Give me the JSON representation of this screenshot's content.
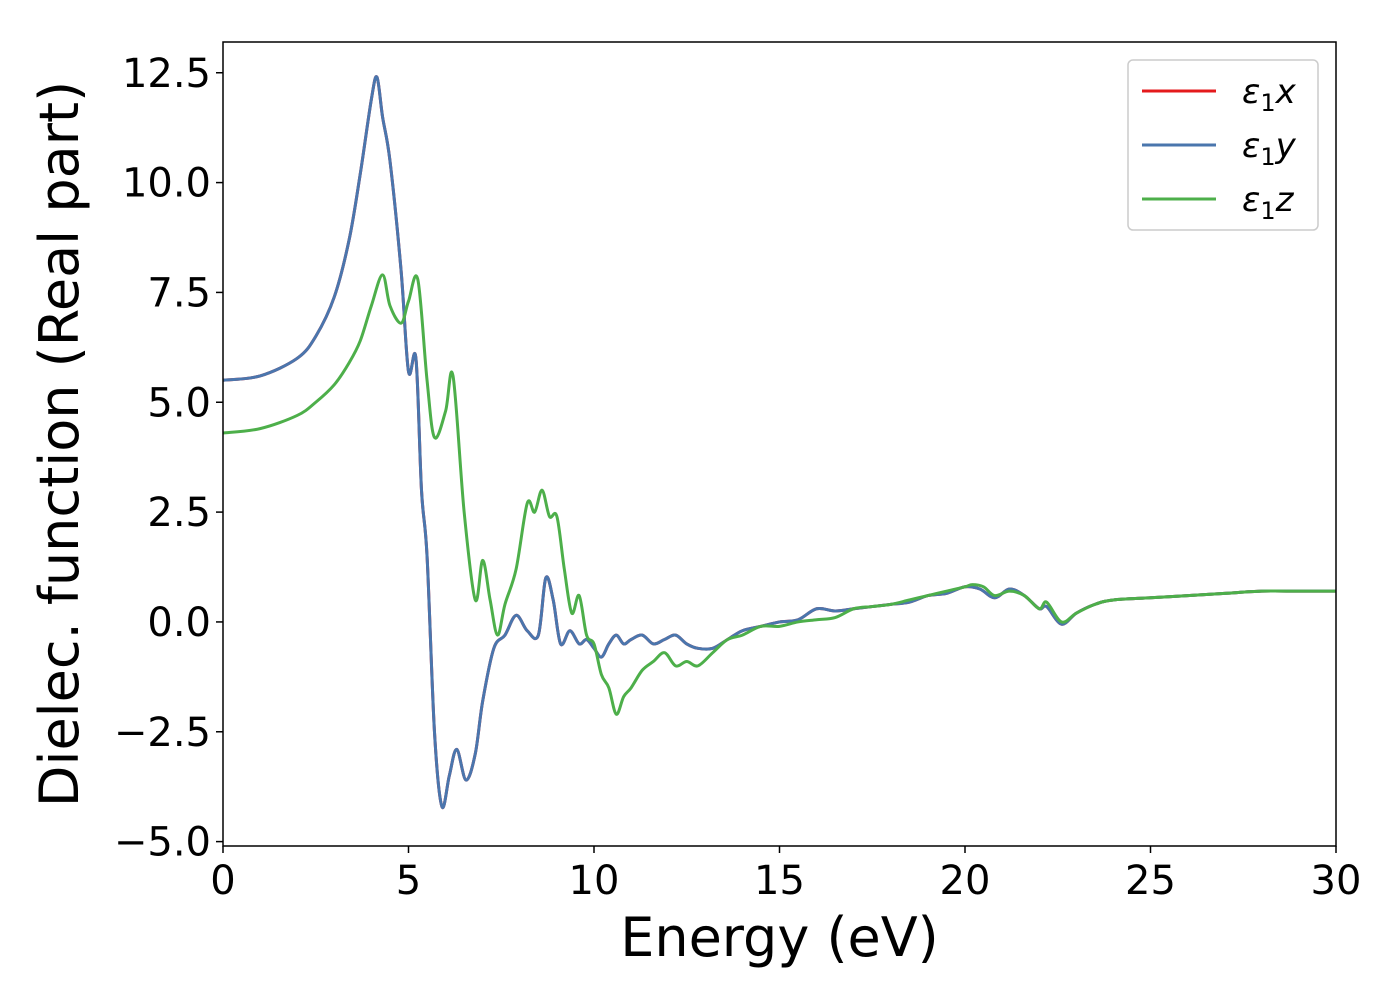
{
  "chart_data": {
    "type": "line",
    "title": "",
    "xlabel": "Energy (eV)",
    "ylabel": "Dielec. function (Real part)",
    "xlim": [
      0,
      30
    ],
    "ylim": [
      -5.1,
      13.2
    ],
    "x_ticks": [
      0,
      5,
      10,
      15,
      20,
      25,
      30
    ],
    "x_tick_labels": [
      "0",
      "5",
      "10",
      "15",
      "20",
      "25",
      "30"
    ],
    "y_ticks": [
      -5.0,
      -2.5,
      0.0,
      2.5,
      5.0,
      7.5,
      10.0,
      12.5
    ],
    "y_tick_labels": [
      "−5.0",
      "−2.5",
      "0.0",
      "2.5",
      "5.0",
      "7.5",
      "10.0",
      "12.5"
    ],
    "grid": false,
    "legend": "top-right",
    "series": [
      {
        "name": "ε₁x",
        "name_base": "ε",
        "name_sub": "1",
        "name_suffix": "x",
        "color": "#e41a1c",
        "x": [
          0,
          1,
          2,
          2.5,
          3,
          3.4,
          3.7,
          4.0,
          4.15,
          4.3,
          4.5,
          4.8,
          5.0,
          5.2,
          5.35,
          5.5,
          5.7,
          5.9,
          6.1,
          6.3,
          6.55,
          6.8,
          7.0,
          7.3,
          7.6,
          7.9,
          8.2,
          8.5,
          8.7,
          8.9,
          9.1,
          9.35,
          9.6,
          9.8,
          10.0,
          10.2,
          10.4,
          10.6,
          10.8,
          11.0,
          11.3,
          11.6,
          11.9,
          12.2,
          12.5,
          12.8,
          13.2,
          13.6,
          14.0,
          14.5,
          15.0,
          15.5,
          16.0,
          16.5,
          17.0,
          17.5,
          18.0,
          18.5,
          19.0,
          19.5,
          20.0,
          20.4,
          20.8,
          21.2,
          21.6,
          22.0,
          22.2,
          22.6,
          23.0,
          23.5,
          24.0,
          25.0,
          26.0,
          27.0,
          28.0,
          29.0,
          30.0
        ],
        "y": [
          5.5,
          5.6,
          6.0,
          6.5,
          7.4,
          8.7,
          10.2,
          11.9,
          12.4,
          11.5,
          10.5,
          8.0,
          5.7,
          6.0,
          3.0,
          1.5,
          -2.5,
          -4.2,
          -3.5,
          -2.9,
          -3.6,
          -3.0,
          -1.8,
          -0.6,
          -0.3,
          0.15,
          -0.2,
          -0.3,
          1.0,
          0.5,
          -0.5,
          -0.2,
          -0.5,
          -0.4,
          -0.6,
          -0.8,
          -0.5,
          -0.3,
          -0.5,
          -0.4,
          -0.3,
          -0.5,
          -0.4,
          -0.3,
          -0.5,
          -0.6,
          -0.6,
          -0.4,
          -0.2,
          -0.1,
          0.0,
          0.05,
          0.3,
          0.25,
          0.3,
          0.35,
          0.4,
          0.45,
          0.6,
          0.65,
          0.8,
          0.75,
          0.55,
          0.75,
          0.6,
          0.3,
          0.35,
          -0.05,
          0.2,
          0.4,
          0.5,
          0.55,
          0.6,
          0.65,
          0.7,
          0.7,
          0.7
        ]
      },
      {
        "name": "ε₁y",
        "name_base": "ε",
        "name_sub": "1",
        "name_suffix": "y",
        "color": "#4a76ad",
        "x": [
          0,
          1,
          2,
          2.5,
          3,
          3.4,
          3.7,
          4.0,
          4.15,
          4.3,
          4.5,
          4.8,
          5.0,
          5.2,
          5.35,
          5.5,
          5.7,
          5.9,
          6.1,
          6.3,
          6.55,
          6.8,
          7.0,
          7.3,
          7.6,
          7.9,
          8.2,
          8.5,
          8.7,
          8.9,
          9.1,
          9.35,
          9.6,
          9.8,
          10.0,
          10.2,
          10.4,
          10.6,
          10.8,
          11.0,
          11.3,
          11.6,
          11.9,
          12.2,
          12.5,
          12.8,
          13.2,
          13.6,
          14.0,
          14.5,
          15.0,
          15.5,
          16.0,
          16.5,
          17.0,
          17.5,
          18.0,
          18.5,
          19.0,
          19.5,
          20.0,
          20.4,
          20.8,
          21.2,
          21.6,
          22.0,
          22.2,
          22.6,
          23.0,
          23.5,
          24.0,
          25.0,
          26.0,
          27.0,
          28.0,
          29.0,
          30.0
        ],
        "y": [
          5.5,
          5.6,
          6.0,
          6.5,
          7.4,
          8.7,
          10.2,
          11.9,
          12.4,
          11.5,
          10.5,
          8.0,
          5.7,
          6.0,
          3.0,
          1.5,
          -2.5,
          -4.2,
          -3.5,
          -2.9,
          -3.6,
          -3.0,
          -1.8,
          -0.6,
          -0.3,
          0.15,
          -0.2,
          -0.3,
          1.0,
          0.5,
          -0.5,
          -0.2,
          -0.5,
          -0.4,
          -0.6,
          -0.8,
          -0.5,
          -0.3,
          -0.5,
          -0.4,
          -0.3,
          -0.5,
          -0.4,
          -0.3,
          -0.5,
          -0.6,
          -0.6,
          -0.4,
          -0.2,
          -0.1,
          0.0,
          0.05,
          0.3,
          0.25,
          0.3,
          0.35,
          0.4,
          0.45,
          0.6,
          0.65,
          0.8,
          0.75,
          0.55,
          0.75,
          0.6,
          0.3,
          0.35,
          -0.05,
          0.2,
          0.4,
          0.5,
          0.55,
          0.6,
          0.65,
          0.7,
          0.7,
          0.7
        ]
      },
      {
        "name": "ε₁z",
        "name_base": "ε",
        "name_sub": "1",
        "name_suffix": "z",
        "color": "#4daf4a",
        "x": [
          0,
          1,
          2,
          2.5,
          3,
          3.4,
          3.7,
          4.0,
          4.3,
          4.5,
          4.8,
          5.0,
          5.25,
          5.5,
          5.7,
          6.0,
          6.2,
          6.5,
          6.8,
          7.0,
          7.2,
          7.4,
          7.6,
          7.9,
          8.2,
          8.4,
          8.6,
          8.8,
          9.0,
          9.2,
          9.4,
          9.6,
          9.8,
          10.0,
          10.2,
          10.4,
          10.6,
          10.8,
          11.0,
          11.3,
          11.6,
          11.9,
          12.2,
          12.5,
          12.8,
          13.2,
          13.6,
          14.0,
          14.5,
          15.0,
          15.5,
          16.0,
          16.5,
          17.0,
          17.5,
          18.0,
          18.5,
          19.0,
          19.5,
          20.0,
          20.2,
          20.5,
          20.8,
          21.2,
          21.6,
          22.0,
          22.2,
          22.6,
          23.0,
          23.5,
          24.0,
          25.0,
          26.0,
          27.0,
          28.0,
          29.0,
          30.0
        ],
        "y": [
          4.3,
          4.4,
          4.7,
          5.0,
          5.4,
          5.9,
          6.4,
          7.2,
          7.9,
          7.2,
          6.8,
          7.3,
          7.8,
          5.5,
          4.2,
          4.8,
          5.6,
          2.5,
          0.5,
          1.4,
          0.5,
          -0.3,
          0.4,
          1.2,
          2.7,
          2.5,
          3.0,
          2.4,
          2.4,
          1.2,
          0.2,
          0.6,
          -0.3,
          -0.5,
          -1.2,
          -1.5,
          -2.1,
          -1.7,
          -1.5,
          -1.1,
          -0.9,
          -0.7,
          -1.0,
          -0.9,
          -1.0,
          -0.7,
          -0.4,
          -0.3,
          -0.1,
          -0.1,
          0.0,
          0.05,
          0.1,
          0.3,
          0.35,
          0.4,
          0.5,
          0.6,
          0.7,
          0.8,
          0.85,
          0.8,
          0.6,
          0.7,
          0.6,
          0.3,
          0.45,
          0.0,
          0.2,
          0.4,
          0.5,
          0.55,
          0.6,
          0.65,
          0.7,
          0.7,
          0.7
        ]
      }
    ]
  }
}
